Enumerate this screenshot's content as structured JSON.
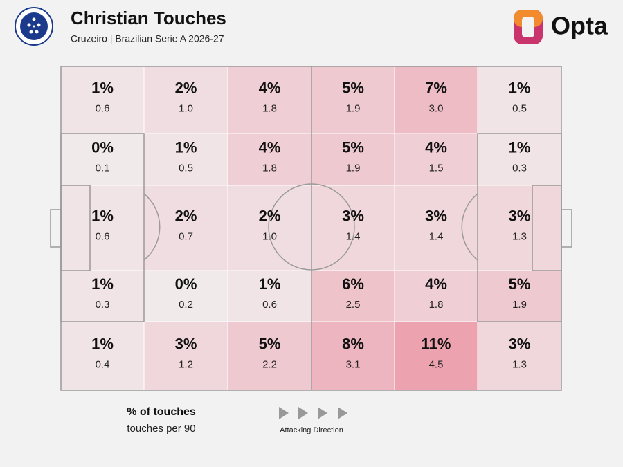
{
  "chart_data": {
    "type": "heatmap",
    "title": "Christian Touches",
    "subtitle": "Cruzeiro | Brazilian Serie A 2026-27",
    "brand": "Opta",
    "color": "#e8788c",
    "zones": [
      {
        "values": [
          1,
          2,
          4,
          5,
          7,
          1
        ],
        "value_labels": [
          "1%",
          "2%",
          "4%",
          "5%",
          "7%",
          "1%"
        ],
        "per90": [
          0.6,
          1.0,
          1.8,
          1.9,
          3.0,
          0.5
        ],
        "per90_labels": [
          "0.6",
          "1.0",
          "1.8",
          "1.9",
          "3.0",
          "0.5"
        ]
      },
      {
        "values": [
          0,
          1,
          4,
          5,
          4,
          1
        ],
        "value_labels": [
          "0%",
          "1%",
          "4%",
          "5%",
          "4%",
          "1%"
        ],
        "per90": [
          0.1,
          0.5,
          1.8,
          1.9,
          1.5,
          0.3
        ],
        "per90_labels": [
          "0.1",
          "0.5",
          "1.8",
          "1.9",
          "1.5",
          "0.3"
        ]
      },
      {
        "values": [
          1,
          2,
          2,
          3,
          3,
          3
        ],
        "value_labels": [
          "1%",
          "2%",
          "2%",
          "3%",
          "3%",
          "3%"
        ],
        "per90": [
          0.6,
          0.7,
          1.0,
          1.4,
          1.4,
          1.3
        ],
        "per90_labels": [
          "0.6",
          "0.7",
          "1.0",
          "1.4",
          "1.4",
          "1.3"
        ]
      },
      {
        "values": [
          1,
          0,
          1,
          6,
          4,
          5
        ],
        "value_labels": [
          "1%",
          "0%",
          "1%",
          "6%",
          "4%",
          "5%"
        ],
        "per90": [
          0.3,
          0.2,
          0.6,
          2.5,
          1.8,
          1.9
        ],
        "per90_labels": [
          "0.3",
          "0.2",
          "0.6",
          "2.5",
          "1.8",
          "1.9"
        ]
      },
      {
        "values": [
          1,
          3,
          5,
          8,
          11,
          3
        ],
        "value_labels": [
          "1%",
          "3%",
          "5%",
          "8%",
          "11%",
          "3%"
        ],
        "per90": [
          0.4,
          1.2,
          2.2,
          3.1,
          4.5,
          1.3
        ],
        "per90_labels": [
          "0.4",
          "1.2",
          "2.2",
          "3.1",
          "4.5",
          "1.3"
        ]
      }
    ],
    "legend_title": "% of touches",
    "legend_subtitle": "touches per 90",
    "direction_label": "Attacking Direction"
  }
}
